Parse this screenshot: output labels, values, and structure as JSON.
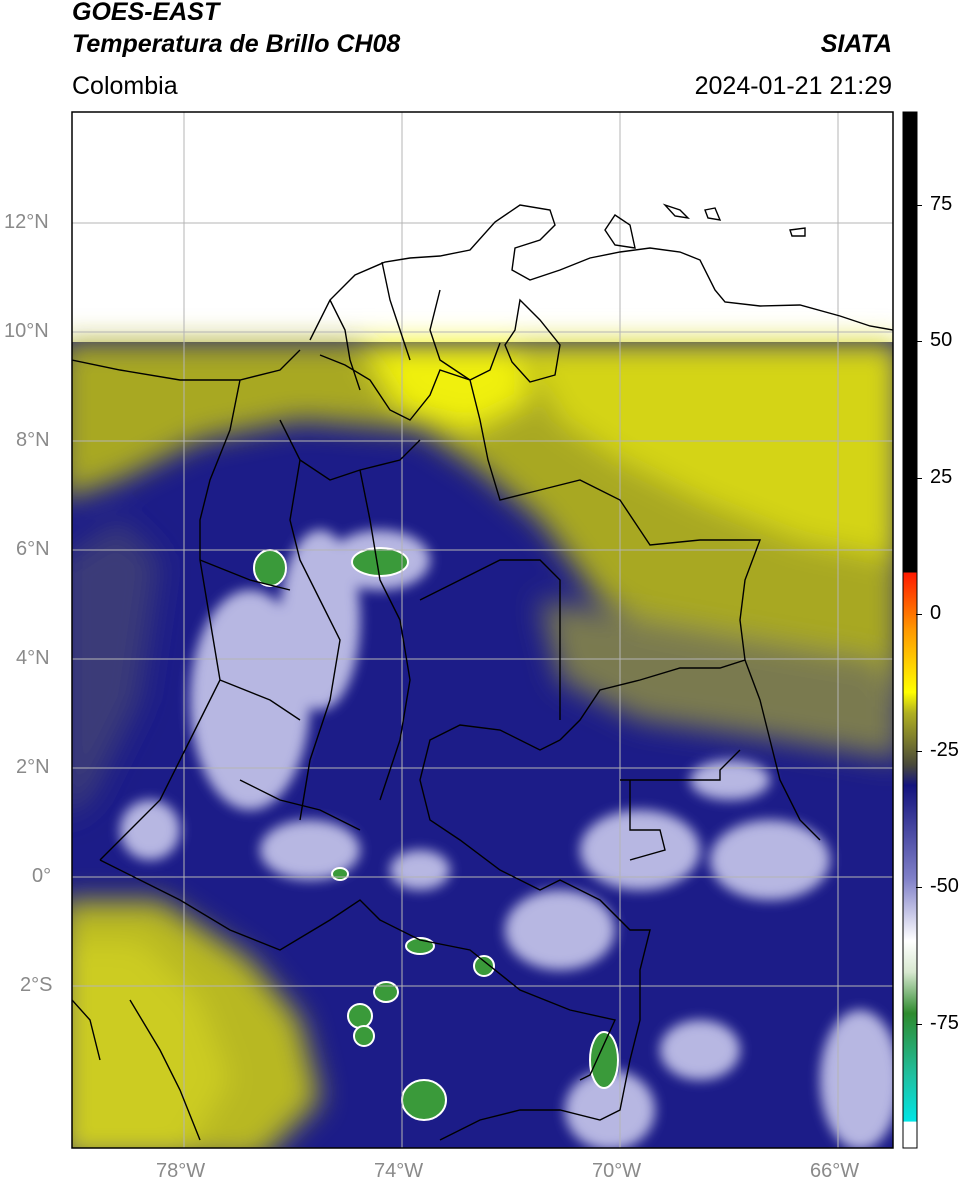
{
  "header": {
    "satellite": "GOES-EAST",
    "product": "Temperatura de Brillo CH08",
    "region": "Colombia",
    "agency": "SIATA",
    "timestamp": "2024-01-21 21:29"
  },
  "map": {
    "lat_ticks": [
      "12°N",
      "10°N",
      "8°N",
      "6°N",
      "4°N",
      "2°N",
      "0°",
      "2°S"
    ],
    "lon_ticks": [
      "78°W",
      "74°W",
      "70°W",
      "66°W"
    ],
    "lat_range": [
      -5,
      14
    ],
    "lon_range": [
      -80,
      -65
    ],
    "data_coverage_north_limit": "9.8°N"
  },
  "colorbar": {
    "ticks": [
      "75",
      "50",
      "25",
      "0",
      "-25",
      "-50",
      "-75"
    ],
    "range": [
      -100,
      90
    ],
    "colors": {
      "black": "#000000",
      "red": "#ff1a00",
      "orange": "#ff9900",
      "yellow": "#ffff00",
      "olive": "#8a8a20",
      "dark_blue": "#14147e",
      "light": "#e8e8f5",
      "green": "#2e8b2e",
      "teal": "#20c0a0",
      "cyan": "#00e5e5"
    }
  }
}
